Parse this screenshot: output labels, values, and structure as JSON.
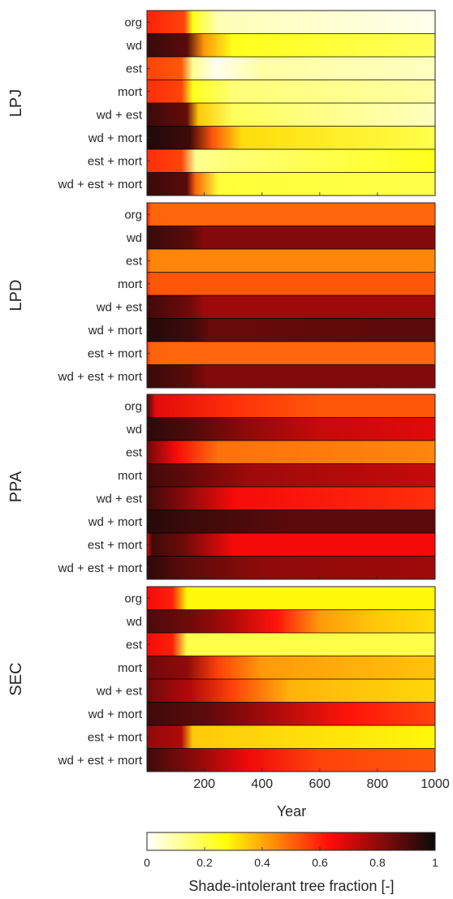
{
  "chart_data": {
    "type": "heatmap",
    "x_axis": {
      "label": "Year",
      "range": [
        1,
        1000
      ],
      "ticks": [
        200,
        400,
        600,
        800,
        1000
      ]
    },
    "row_labels": [
      "org",
      "wd",
      "est",
      "mort",
      "wd + est",
      "wd + mort",
      "est + mort",
      "wd + est + mort"
    ],
    "colorbar": {
      "label": "Shade-intolerant tree fraction [-]",
      "range": [
        0,
        1
      ],
      "ticks": [
        0,
        0.2,
        0.4,
        0.6,
        0.8,
        1
      ],
      "ticklabels": [
        "0",
        "0.2",
        "0.4",
        "0.6",
        "0.8",
        "1"
      ],
      "colormap": "hot (reversed)"
    },
    "panels": [
      {
        "name": "LPJ",
        "rows": [
          {
            "row": "org",
            "keyframes": [
              [
                1,
                0.6
              ],
              [
                130,
                0.55
              ],
              [
                160,
                0.25
              ],
              [
                250,
                0.08
              ],
              [
                1000,
                0.02
              ]
            ]
          },
          {
            "row": "wd",
            "keyframes": [
              [
                1,
                0.93
              ],
              [
                140,
                0.88
              ],
              [
                200,
                0.42
              ],
              [
                300,
                0.25
              ],
              [
                1000,
                0.18
              ]
            ]
          },
          {
            "row": "est",
            "keyframes": [
              [
                1,
                0.55
              ],
              [
                120,
                0.52
              ],
              [
                160,
                0.12
              ],
              [
                240,
                0.02
              ],
              [
                400,
                0.1
              ],
              [
                1000,
                0.07
              ]
            ]
          },
          {
            "row": "mort",
            "keyframes": [
              [
                1,
                0.58
              ],
              [
                120,
                0.55
              ],
              [
                160,
                0.25
              ],
              [
                300,
                0.15
              ],
              [
                1000,
                0.1
              ]
            ]
          },
          {
            "row": "wd + est",
            "keyframes": [
              [
                1,
                0.93
              ],
              [
                140,
                0.86
              ],
              [
                180,
                0.35
              ],
              [
                300,
                0.18
              ],
              [
                1000,
                0.07
              ]
            ]
          },
          {
            "row": "wd + mort",
            "keyframes": [
              [
                1,
                0.97
              ],
              [
                150,
                0.92
              ],
              [
                230,
                0.52
              ],
              [
                330,
                0.32
              ],
              [
                1000,
                0.2
              ]
            ]
          },
          {
            "row": "est + mort",
            "keyframes": [
              [
                1,
                0.58
              ],
              [
                120,
                0.55
              ],
              [
                170,
                0.12
              ],
              [
                280,
                0.15
              ],
              [
                1000,
                0.25
              ]
            ]
          },
          {
            "row": "wd + est + mort",
            "keyframes": [
              [
                1,
                0.93
              ],
              [
                140,
                0.88
              ],
              [
                170,
                0.5
              ],
              [
                250,
                0.22
              ],
              [
                1000,
                0.2
              ]
            ]
          }
        ]
      },
      {
        "name": "LPD",
        "rows": [
          {
            "row": "org",
            "keyframes": [
              [
                1,
                0.62
              ],
              [
                15,
                0.5
              ],
              [
                1000,
                0.5
              ]
            ]
          },
          {
            "row": "wd",
            "keyframes": [
              [
                1,
                0.93
              ],
              [
                150,
                0.88
              ],
              [
                200,
                0.82
              ],
              [
                1000,
                0.82
              ]
            ]
          },
          {
            "row": "est",
            "keyframes": [
              [
                1,
                0.55
              ],
              [
                15,
                0.45
              ],
              [
                1000,
                0.45
              ]
            ]
          },
          {
            "row": "mort",
            "keyframes": [
              [
                1,
                0.6
              ],
              [
                15,
                0.52
              ],
              [
                1000,
                0.52
              ]
            ]
          },
          {
            "row": "wd + est",
            "keyframes": [
              [
                1,
                0.92
              ],
              [
                150,
                0.85
              ],
              [
                200,
                0.78
              ],
              [
                1000,
                0.78
              ]
            ]
          },
          {
            "row": "wd + mort",
            "keyframes": [
              [
                1,
                0.96
              ],
              [
                160,
                0.92
              ],
              [
                220,
                0.86
              ],
              [
                1000,
                0.88
              ]
            ]
          },
          {
            "row": "est + mort",
            "keyframes": [
              [
                1,
                0.58
              ],
              [
                15,
                0.5
              ],
              [
                1000,
                0.5
              ]
            ]
          },
          {
            "row": "wd + est + mort",
            "keyframes": [
              [
                1,
                0.93
              ],
              [
                150,
                0.88
              ],
              [
                210,
                0.82
              ],
              [
                1000,
                0.82
              ]
            ]
          }
        ]
      },
      {
        "name": "PPA",
        "rows": [
          {
            "row": "org",
            "keyframes": [
              [
                1,
                0.92
              ],
              [
                30,
                0.68
              ],
              [
                300,
                0.58
              ],
              [
                600,
                0.52
              ],
              [
                1000,
                0.52
              ]
            ]
          },
          {
            "row": "wd",
            "keyframes": [
              [
                1,
                0.95
              ],
              [
                150,
                0.9
              ],
              [
                350,
                0.8
              ],
              [
                600,
                0.72
              ],
              [
                1000,
                0.68
              ]
            ]
          },
          {
            "row": "est",
            "keyframes": [
              [
                1,
                0.85
              ],
              [
                100,
                0.65
              ],
              [
                250,
                0.48
              ],
              [
                1000,
                0.45
              ]
            ]
          },
          {
            "row": "mort",
            "keyframes": [
              [
                1,
                0.92
              ],
              [
                120,
                0.88
              ],
              [
                350,
                0.78
              ],
              [
                1000,
                0.72
              ]
            ]
          },
          {
            "row": "wd + est",
            "keyframes": [
              [
                1,
                0.92
              ],
              [
                120,
                0.82
              ],
              [
                300,
                0.65
              ],
              [
                1000,
                0.58
              ]
            ]
          },
          {
            "row": "wd + mort",
            "keyframes": [
              [
                1,
                0.96
              ],
              [
                120,
                0.93
              ],
              [
                500,
                0.88
              ],
              [
                1000,
                0.88
              ]
            ]
          },
          {
            "row": "est + mort",
            "keyframes": [
              [
                1,
                0.7
              ],
              [
                20,
                0.92
              ],
              [
                130,
                0.85
              ],
              [
                300,
                0.65
              ],
              [
                1000,
                0.65
              ]
            ]
          },
          {
            "row": "wd + est + mort",
            "keyframes": [
              [
                1,
                0.95
              ],
              [
                130,
                0.88
              ],
              [
                400,
                0.8
              ],
              [
                1000,
                0.78
              ]
            ]
          }
        ]
      },
      {
        "name": "SEC",
        "rows": [
          {
            "row": "org",
            "keyframes": [
              [
                1,
                0.65
              ],
              [
                90,
                0.6
              ],
              [
                140,
                0.28
              ],
              [
                220,
                0.28
              ],
              [
                1000,
                0.28
              ]
            ]
          },
          {
            "row": "wd",
            "keyframes": [
              [
                1,
                0.9
              ],
              [
                150,
                0.85
              ],
              [
                300,
                0.75
              ],
              [
                450,
                0.62
              ],
              [
                600,
                0.42
              ],
              [
                800,
                0.35
              ],
              [
                1000,
                0.32
              ]
            ]
          },
          {
            "row": "est",
            "keyframes": [
              [
                1,
                0.65
              ],
              [
                90,
                0.6
              ],
              [
                140,
                0.2
              ],
              [
                1000,
                0.2
              ]
            ]
          },
          {
            "row": "mort",
            "keyframes": [
              [
                1,
                0.85
              ],
              [
                140,
                0.8
              ],
              [
                250,
                0.55
              ],
              [
                400,
                0.42
              ],
              [
                1000,
                0.36
              ]
            ]
          },
          {
            "row": "wd + est",
            "keyframes": [
              [
                1,
                0.85
              ],
              [
                150,
                0.75
              ],
              [
                300,
                0.55
              ],
              [
                500,
                0.38
              ],
              [
                1000,
                0.33
              ]
            ]
          },
          {
            "row": "wd + mort",
            "keyframes": [
              [
                1,
                0.92
              ],
              [
                200,
                0.88
              ],
              [
                400,
                0.78
              ],
              [
                700,
                0.62
              ],
              [
                1000,
                0.55
              ]
            ]
          },
          {
            "row": "est + mort",
            "keyframes": [
              [
                1,
                0.8
              ],
              [
                120,
                0.75
              ],
              [
                160,
                0.35
              ],
              [
                1000,
                0.28
              ]
            ]
          },
          {
            "row": "wd + est + mort",
            "keyframes": [
              [
                1,
                0.92
              ],
              [
                150,
                0.82
              ],
              [
                350,
                0.66
              ],
              [
                600,
                0.55
              ],
              [
                1000,
                0.52
              ]
            ]
          }
        ]
      }
    ]
  }
}
